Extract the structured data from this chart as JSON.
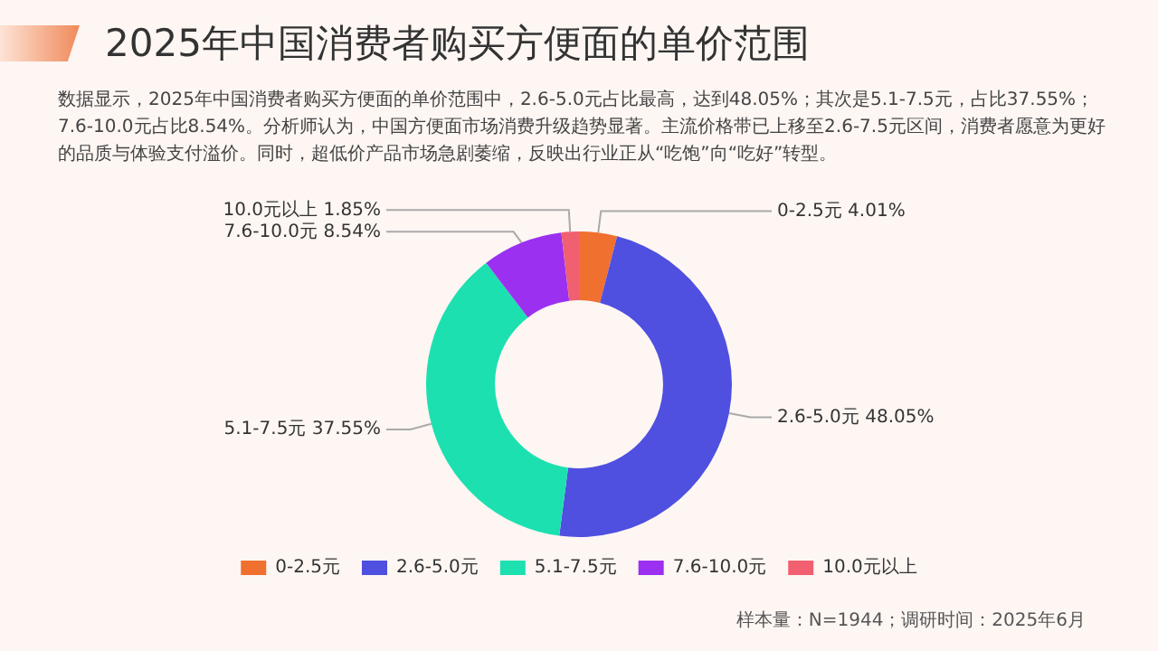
{
  "chart_data": {
    "type": "donut",
    "title": "2025年中国消费者购买方便面的单价范围",
    "subtitle": "数据显示，2025年中国消费者购买方便面的单价范围中，2.6-5.0元占比最高，达到48.05%；其次是5.1-7.5元，占比37.55%；7.6-10.0元占比8.54%。分析师认为，中国方便面市场消费升级趋势显著。主流价格带已上移至2.6-7.5元区间，消费者愿意为更好的品质与体验支付溢价。同时，超低价产品市场急剧萎缩，反映出行业正从“吃饱”向“吃好”转型。",
    "categories": [
      "0-2.5元",
      "2.6-5.0元",
      "5.1-7.5元",
      "7.6-10.0元",
      "10.0元以上"
    ],
    "values": [
      4.01,
      48.05,
      37.55,
      8.54,
      1.85
    ],
    "colors": [
      "#f07030",
      "#4f4fe0",
      "#1de0b0",
      "#9b30f0",
      "#f06070"
    ],
    "value_labels": [
      "4.01%",
      "48.05%",
      "37.55%",
      "8.54%",
      "1.85%"
    ],
    "legend": "bottom",
    "annotations": [
      "样本量：N=1944；调研时间：2025年6月"
    ]
  }
}
